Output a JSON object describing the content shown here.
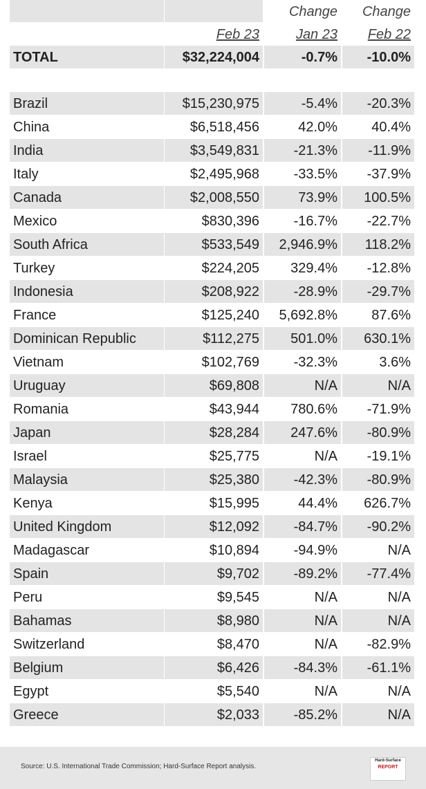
{
  "header": {
    "change_labels": [
      "Change",
      "Change"
    ],
    "period_labels": [
      "Feb 23",
      "Jan 23",
      "Feb 22"
    ]
  },
  "total": [
    "TOTAL",
    "$32,224,004",
    "-0.7%",
    "-10.0%"
  ],
  "rows": [
    [
      "Brazil",
      "$15,230,975",
      "-5.4%",
      "-20.3%"
    ],
    [
      "China",
      "$6,518,456",
      "42.0%",
      "40.4%"
    ],
    [
      "India",
      "$3,549,831",
      "-21.3%",
      "-11.9%"
    ],
    [
      "Italy",
      "$2,495,968",
      "-33.5%",
      "-37.9%"
    ],
    [
      "Canada",
      "$2,008,550",
      "73.9%",
      "100.5%"
    ],
    [
      "Mexico",
      "$830,396",
      "-16.7%",
      "-22.7%"
    ],
    [
      "South Africa",
      "$533,549",
      "2,946.9%",
      "118.2%"
    ],
    [
      "Turkey",
      "$224,205",
      "329.4%",
      "-12.8%"
    ],
    [
      "Indonesia",
      "$208,922",
      "-28.9%",
      "-29.7%"
    ],
    [
      "France",
      "$125,240",
      "5,692.8%",
      "87.6%"
    ],
    [
      "Dominican Republic",
      "$112,275",
      "501.0%",
      "630.1%"
    ],
    [
      "Vietnam",
      "$102,769",
      "-32.3%",
      "3.6%"
    ],
    [
      "Uruguay",
      "$69,808",
      "N/A",
      "N/A"
    ],
    [
      "Romania",
      "$43,944",
      "780.6%",
      "-71.9%"
    ],
    [
      "Japan",
      "$28,284",
      "247.6%",
      "-80.9%"
    ],
    [
      "Israel",
      "$25,775",
      "N/A",
      "-19.1%"
    ],
    [
      "Malaysia",
      "$25,380",
      "-42.3%",
      "-80.9%"
    ],
    [
      "Kenya",
      "$15,995",
      "44.4%",
      "626.7%"
    ],
    [
      "United Kingdom",
      "$12,092",
      "-84.7%",
      "-90.2%"
    ],
    [
      "Madagascar",
      "$10,894",
      "-94.9%",
      "N/A"
    ],
    [
      "Spain",
      "$9,702",
      "-89.2%",
      "-77.4%"
    ],
    [
      "Peru",
      "$9,545",
      "N/A",
      "N/A"
    ],
    [
      "Bahamas",
      "$8,980",
      "N/A",
      "N/A"
    ],
    [
      "Switzerland",
      "$8,470",
      "N/A",
      "-82.9%"
    ],
    [
      "Belgium",
      "$6,426",
      "-84.3%",
      "-61.1%"
    ],
    [
      "Egypt",
      "$5,540",
      "N/A",
      "N/A"
    ],
    [
      "Greece",
      "$2,033",
      "-85.2%",
      "N/A"
    ]
  ],
  "footer": {
    "source": "Source: U.S. International Trade Commission; Hard-Surface Report analysis.",
    "logo": [
      "Hard-Surface",
      "REPORT"
    ]
  }
}
